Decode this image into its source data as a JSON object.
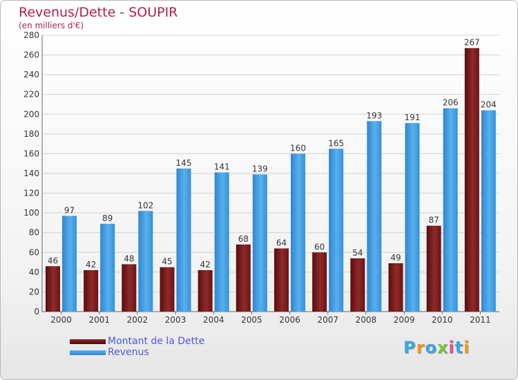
{
  "chart_data": {
    "type": "bar",
    "title": "Revenus/Dette - SOUPIR",
    "subtitle": "(en milliers d'€)",
    "categories": [
      "2000",
      "2001",
      "2002",
      "2003",
      "2004",
      "2005",
      "2006",
      "2007",
      "2008",
      "2009",
      "2010",
      "2011"
    ],
    "series": [
      {
        "name": "Montant de la Dette",
        "color": "#7a1a1a",
        "values": [
          46,
          42,
          48,
          45,
          42,
          68,
          64,
          60,
          54,
          49,
          87,
          267
        ]
      },
      {
        "name": "Revenus",
        "color": "#3a9ae0",
        "values": [
          97,
          89,
          102,
          145,
          141,
          139,
          160,
          165,
          193,
          191,
          206,
          204
        ]
      }
    ],
    "ylim": [
      0,
      280
    ],
    "yticks": [
      0,
      20,
      40,
      60,
      80,
      100,
      120,
      140,
      160,
      180,
      200,
      220,
      240,
      260,
      280
    ],
    "grid": true,
    "legend_position": "bottom-left"
  },
  "logo": {
    "letters": [
      "P",
      "r",
      "o",
      "x",
      "i",
      "t",
      "i"
    ],
    "colors": [
      "#3aa7e0",
      "#f29a1c",
      "#3aa7e0",
      "#7cc142",
      "#e94e9b",
      "#3aa7e0",
      "#f29a1c"
    ]
  }
}
